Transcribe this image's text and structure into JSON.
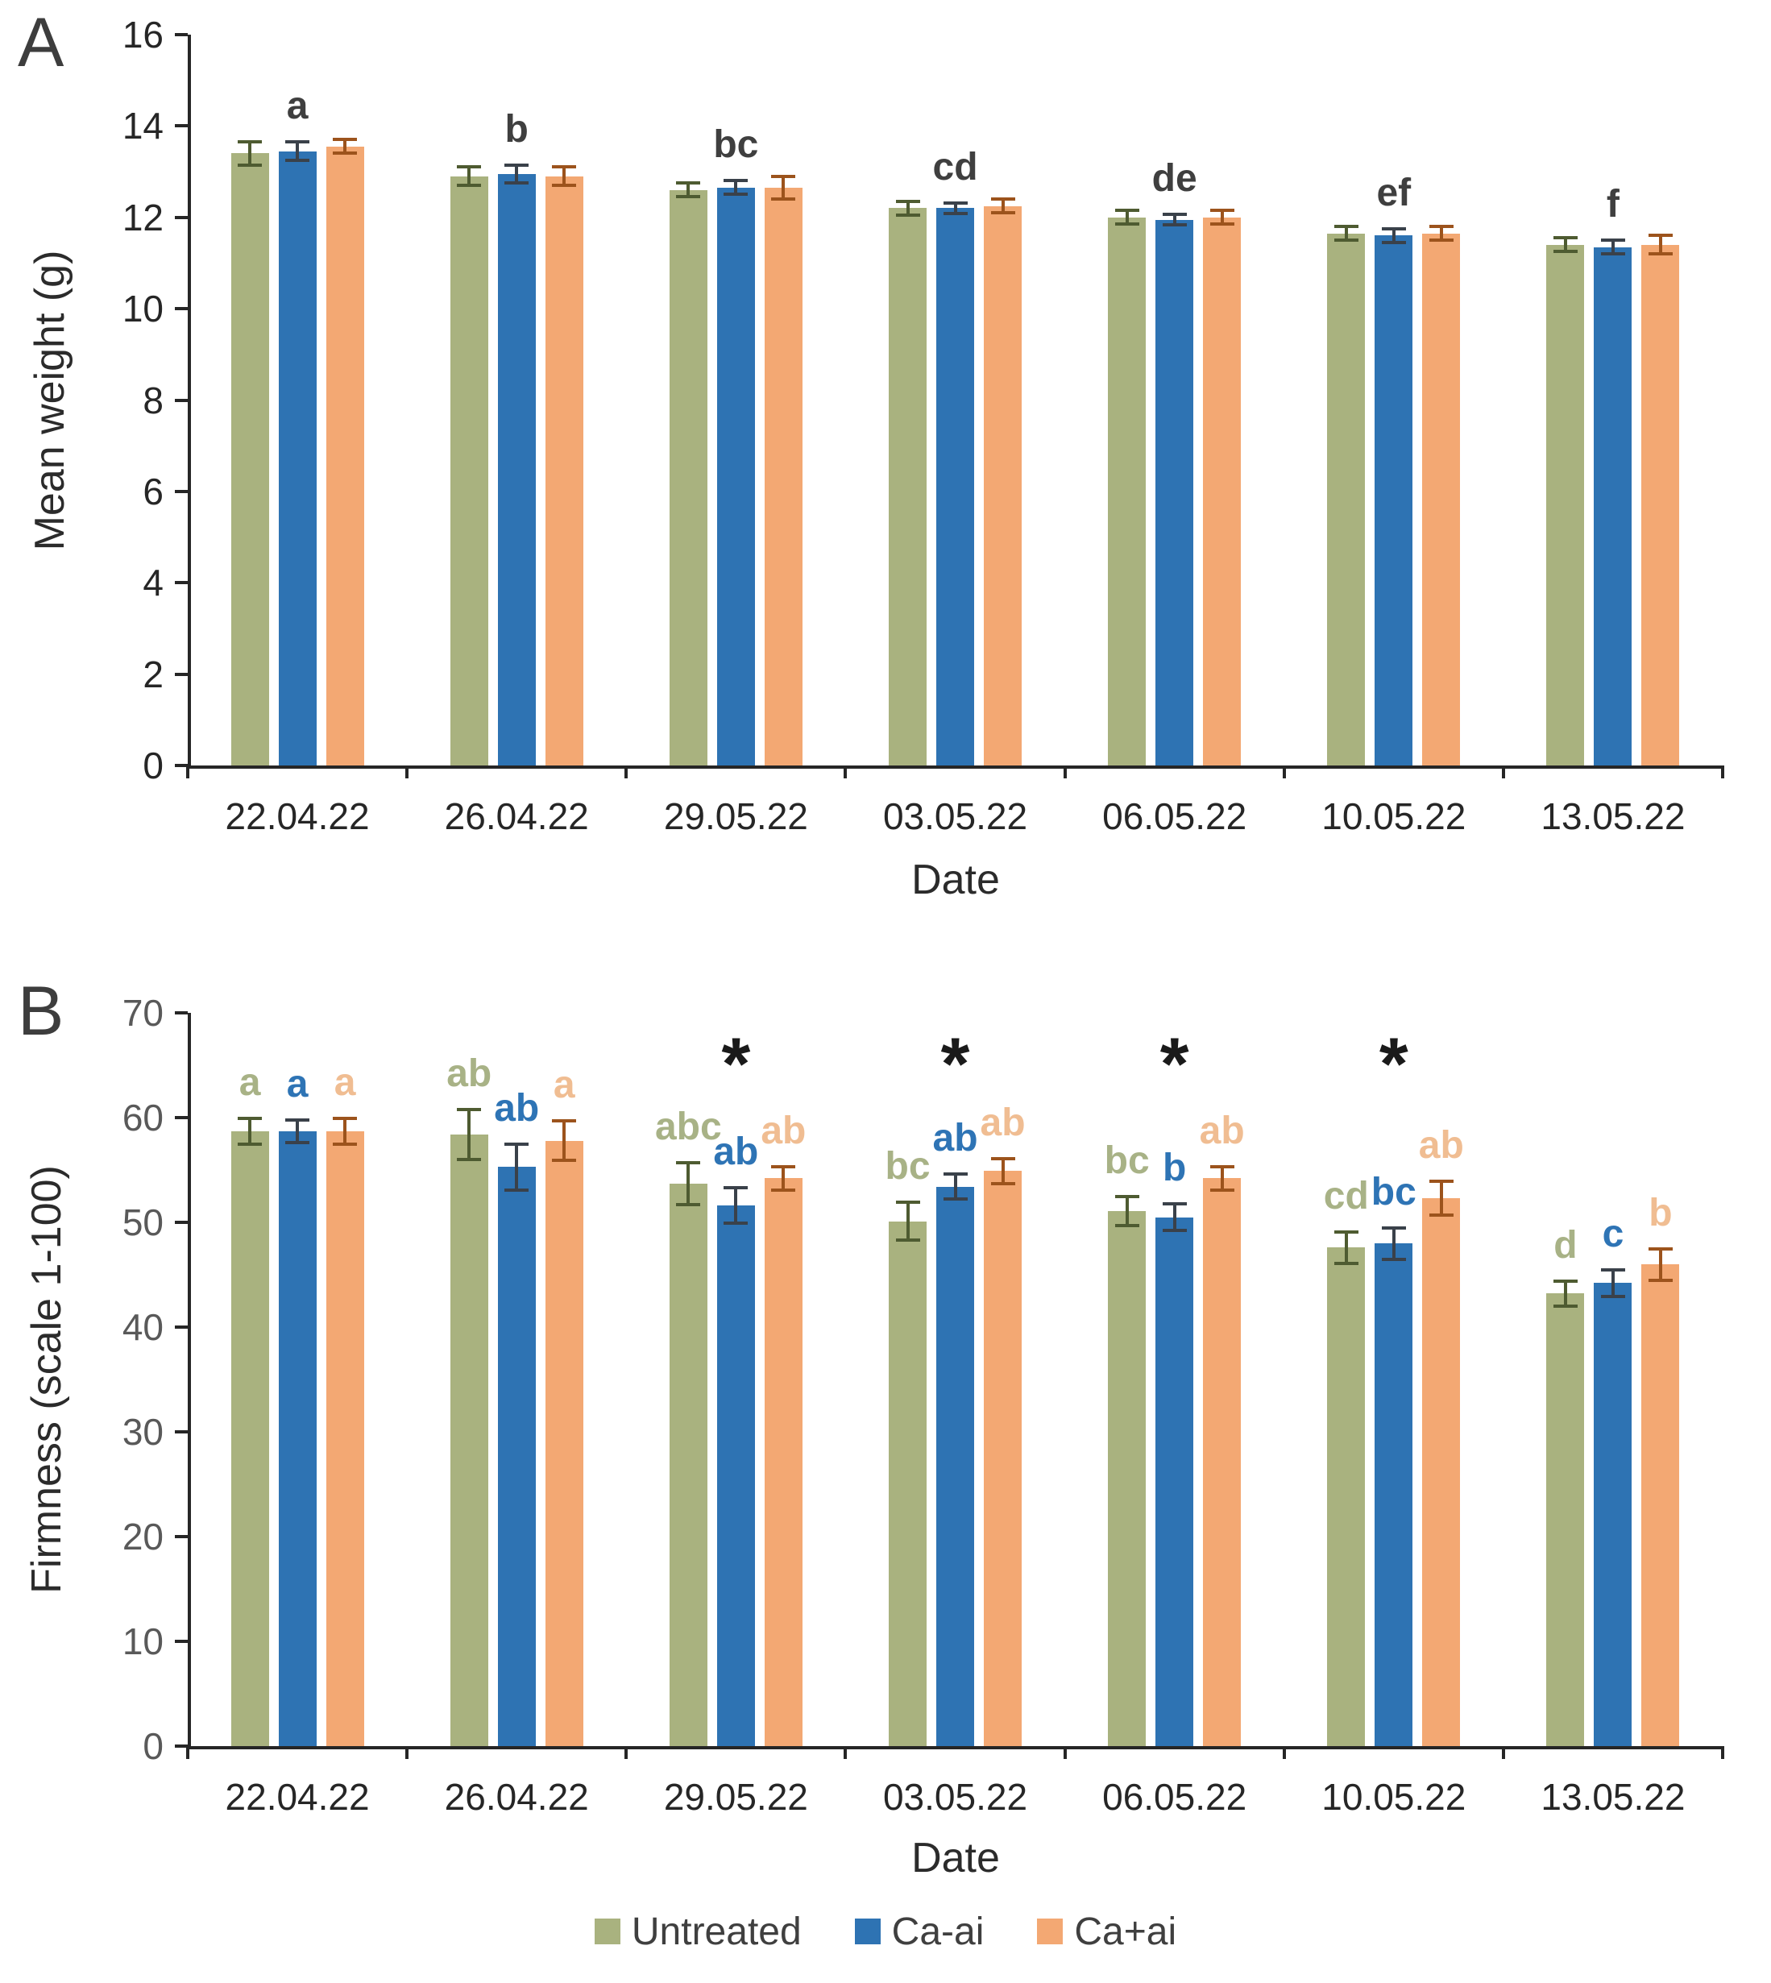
{
  "figure": {
    "background": "#ffffff"
  },
  "chart_data": [
    {
      "type": "bar",
      "panel_label": "A",
      "title": "",
      "ylabel": "Mean weight (g)",
      "xlabel": "Date",
      "ylim": [
        0,
        16
      ],
      "ytick_step": 2,
      "grid": false,
      "categories": [
        "22.04.22",
        "26.04.22",
        "29.05.22",
        "03.05.22",
        "06.05.22",
        "10.05.22",
        "13.05.22"
      ],
      "series": [
        {
          "name": "Untreated",
          "color": "#a9b27f",
          "error_color": "#4e5b31",
          "values": [
            13.4,
            12.9,
            12.6,
            12.2,
            12.0,
            11.65,
            11.4
          ],
          "errors": [
            0.25,
            0.2,
            0.15,
            0.15,
            0.15,
            0.15,
            0.15
          ]
        },
        {
          "name": "Ca-ai",
          "color": "#2e73b3",
          "error_color": "#3a414a",
          "values": [
            13.45,
            12.95,
            12.65,
            12.2,
            11.95,
            11.6,
            11.35
          ],
          "errors": [
            0.2,
            0.2,
            0.15,
            0.12,
            0.12,
            0.15,
            0.15
          ]
        },
        {
          "name": "Ca+ai",
          "color": "#f3a873",
          "error_color": "#9c531c",
          "values": [
            13.55,
            12.9,
            12.65,
            12.25,
            12.0,
            11.65,
            11.4
          ],
          "errors": [
            0.15,
            0.2,
            0.25,
            0.15,
            0.15,
            0.15,
            0.2
          ]
        }
      ],
      "group_letters": [
        "a",
        "b",
        "bc",
        "cd",
        "de",
        "ef",
        "f"
      ],
      "group_letter_color": "#3f3f3f",
      "axis_color": "#262626",
      "ytick_label_color": "#262626",
      "xtick_label_color": "#262626"
    },
    {
      "type": "bar",
      "panel_label": "B",
      "title": "",
      "ylabel": "Firmness (scale 1-100)",
      "xlabel": "Date",
      "ylim": [
        0,
        70
      ],
      "ytick_step": 10,
      "grid": false,
      "categories": [
        "22.04.22",
        "26.04.22",
        "29.05.22",
        "03.05.22",
        "06.05.22",
        "10.05.22",
        "13.05.22"
      ],
      "series": [
        {
          "name": "Untreated",
          "color": "#a9b27f",
          "error_color": "#4e5b31",
          "letter_color": "#a8b286",
          "values": [
            58.7,
            58.4,
            53.7,
            50.1,
            51.1,
            47.6,
            43.2
          ],
          "errors": [
            1.2,
            2.4,
            2.0,
            1.8,
            1.4,
            1.5,
            1.2
          ],
          "letters": [
            "a",
            "ab",
            "abc",
            "bc",
            "bc",
            "cd",
            "d"
          ]
        },
        {
          "name": "Ca-ai",
          "color": "#2e73b3",
          "error_color": "#3a414a",
          "letter_color": "#2e74b5",
          "values": [
            58.7,
            55.3,
            51.6,
            53.4,
            50.5,
            48.0,
            44.2
          ],
          "errors": [
            1.1,
            2.2,
            1.7,
            1.2,
            1.3,
            1.5,
            1.3
          ],
          "letters": [
            "a",
            "ab",
            "ab",
            "ab",
            "b",
            "bc",
            "c"
          ]
        },
        {
          "name": "Ca+ai",
          "color": "#f3a873",
          "error_color": "#9c531c",
          "letter_color": "#f0bd92",
          "values": [
            58.7,
            57.8,
            54.2,
            54.9,
            54.2,
            52.3,
            46.0
          ],
          "errors": [
            1.2,
            1.9,
            1.1,
            1.2,
            1.1,
            1.6,
            1.5
          ],
          "letters": [
            "a",
            "a",
            "ab",
            "ab",
            "ab",
            "ab",
            "b"
          ]
        }
      ],
      "asterisk_groups": [
        2,
        3,
        4,
        5
      ],
      "asterisk_symbol": "*",
      "axis_color": "#262626",
      "ytick_label_color": "#595959",
      "xtick_label_color": "#262626"
    }
  ],
  "legend": {
    "items": [
      {
        "label": "Untreated",
        "color": "#a9b27f"
      },
      {
        "label": "Ca-ai",
        "color": "#2e73b3"
      },
      {
        "label": "Ca+ai",
        "color": "#f3a873"
      }
    ]
  }
}
